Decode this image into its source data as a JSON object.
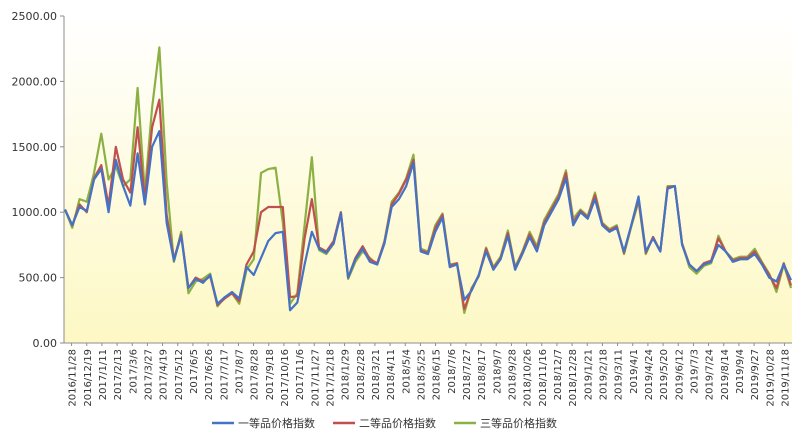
{
  "chart_data": {
    "type": "line",
    "title": "",
    "xlabel": "",
    "ylabel": "",
    "ylim": [
      0,
      2500
    ],
    "y_ticks": [
      0,
      500,
      1000,
      1500,
      2000,
      2500
    ],
    "y_tick_labels": [
      "0.00",
      "500.00",
      "1000.00",
      "1500.00",
      "2000.00",
      "2500.00"
    ],
    "grid": false,
    "legend_position": "bottom",
    "background": "vertical gradient light yellow to white",
    "x_tick_labels": [
      "2016/11/28",
      "2016/12/19",
      "2017/1/11",
      "2017/2/13",
      "2017/3/6",
      "2017/3/27",
      "2017/4/19",
      "2017/5/12",
      "2017/6/5",
      "2017/6/26",
      "2017/7/17",
      "2017/8/7",
      "2017/8/28",
      "2017/9/18",
      "2017/10/16",
      "2017/11/6",
      "2017/11/27",
      "2017/12/18",
      "2018/1/29",
      "2018/2/28",
      "2018/3/21",
      "2018/4/11",
      "2018/5/4",
      "2018/5/25",
      "2018/6/15",
      "2018/7/6",
      "2018/7/27",
      "2018/8/17",
      "2018/9/7",
      "2018/9/28",
      "2018/10/26",
      "2018/11/16",
      "2018/12/7",
      "2018/12/28",
      "2019/1/21",
      "2019/2/18",
      "2019/3/11",
      "2019/4/1",
      "2019/4/24",
      "2019/5/20",
      "2019/6/12",
      "2019/7/3",
      "2019/7/24",
      "2019/8/14",
      "2019/9/4",
      "2019/9/27",
      "2019/10/28",
      "2019/11/18"
    ],
    "series": [
      {
        "name": "一等品价格指数",
        "color": "#4472C4",
        "values": [
          1020,
          900,
          1040,
          1010,
          1250,
          1330,
          1000,
          1400,
          1200,
          1050,
          1450,
          1060,
          1500,
          1620,
          920,
          630,
          820,
          420,
          490,
          460,
          520,
          300,
          350,
          390,
          340,
          580,
          520,
          650,
          780,
          840,
          850,
          250,
          310,
          600,
          850,
          720,
          690,
          760,
          990,
          500,
          640,
          720,
          620,
          600,
          760,
          1040,
          1100,
          1200,
          1380,
          700,
          680,
          850,
          960,
          580,
          600,
          330,
          400,
          520,
          700,
          560,
          640,
          820,
          560,
          680,
          810,
          700,
          900,
          1000,
          1100,
          1260,
          900,
          1000,
          950,
          1100,
          900,
          850,
          880,
          700,
          900,
          1120,
          700,
          800,
          700,
          1180,
          1200,
          750,
          600,
          550,
          600,
          620,
          750,
          700,
          620,
          640,
          640,
          680,
          600,
          500,
          470,
          600,
          480
        ]
      },
      {
        "name": "二等品价格指数",
        "color": "#C0504D",
        "values": [
          1020,
          900,
          1060,
          1000,
          1260,
          1360,
          1050,
          1500,
          1250,
          1150,
          1650,
          1100,
          1650,
          1860,
          980,
          640,
          830,
          420,
          500,
          470,
          510,
          290,
          340,
          380,
          320,
          600,
          700,
          1000,
          1040,
          1040,
          1040,
          350,
          360,
          800,
          1100,
          730,
          700,
          780,
          1000,
          500,
          650,
          740,
          640,
          610,
          770,
          1060,
          1140,
          1250,
          1400,
          710,
          690,
          880,
          980,
          590,
          610,
          260,
          410,
          520,
          720,
          570,
          650,
          840,
          570,
          690,
          830,
          720,
          920,
          1020,
          1120,
          1300,
          920,
          1010,
          960,
          1130,
          910,
          860,
          890,
          690,
          900,
          1100,
          690,
          810,
          700,
          1190,
          1200,
          760,
          600,
          550,
          610,
          630,
          800,
          700,
          630,
          650,
          650,
          700,
          610,
          520,
          420,
          610,
          440
        ]
      },
      {
        "name": "三等品价格指数",
        "color": "#8CB143",
        "values": [
          1020,
          880,
          1100,
          1080,
          1300,
          1600,
          1250,
          1350,
          1200,
          1250,
          1950,
          1150,
          1800,
          2260,
          1230,
          620,
          850,
          380,
          470,
          490,
          530,
          280,
          350,
          380,
          300,
          560,
          640,
          1300,
          1330,
          1340,
          920,
          300,
          380,
          900,
          1420,
          710,
          680,
          760,
          1000,
          490,
          620,
          700,
          650,
          600,
          780,
          1080,
          1150,
          1260,
          1440,
          720,
          700,
          900,
          990,
          600,
          610,
          230,
          420,
          510,
          730,
          580,
          660,
          860,
          580,
          700,
          850,
          740,
          940,
          1040,
          1140,
          1320,
          950,
          1020,
          970,
          1150,
          920,
          870,
          900,
          680,
          890,
          1080,
          680,
          810,
          700,
          1200,
          1200,
          760,
          580,
          530,
          590,
          610,
          820,
          700,
          640,
          660,
          660,
          720,
          620,
          530,
          390,
          600,
          420
        ]
      }
    ]
  }
}
